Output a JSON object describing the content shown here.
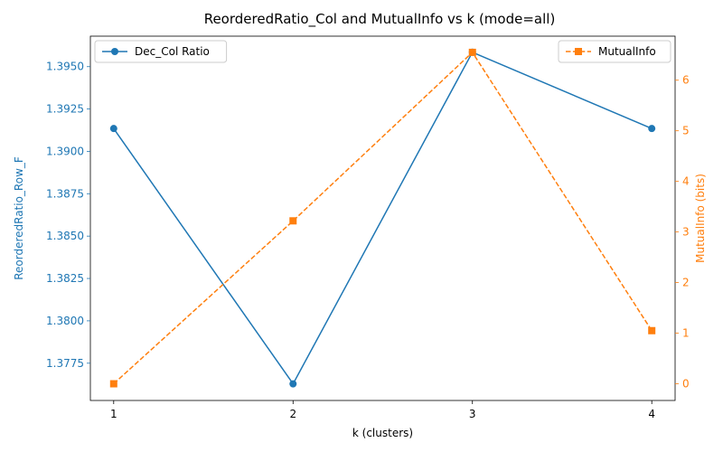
{
  "chart_data": {
    "type": "line",
    "title": "ReorderedRatio_Col and MutualInfo vs k (mode=all)",
    "xlabel": "k (clusters)",
    "x": [
      1,
      2,
      3,
      4
    ],
    "x_ticks": [
      "1",
      "2",
      "3",
      "4"
    ],
    "xlim": [
      0.87,
      4.13
    ],
    "grid": false,
    "left_axis": {
      "label": "ReorderedRatio_Row_F",
      "color": "#1f77b4",
      "ylim": [
        1.3753,
        1.3968
      ],
      "ticks": [
        1.3775,
        1.38,
        1.3825,
        1.385,
        1.3875,
        1.39,
        1.3925,
        1.395
      ],
      "tick_labels": [
        "1.3775",
        "1.3800",
        "1.3825",
        "1.3850",
        "1.3875",
        "1.3900",
        "1.3925",
        "1.3950"
      ]
    },
    "right_axis": {
      "label": "MutualInfo (bits)",
      "color": "#ff7f0e",
      "ylim": [
        -0.33,
        6.87
      ],
      "ticks": [
        0,
        1,
        2,
        3,
        4,
        5,
        6
      ],
      "tick_labels": [
        "0",
        "1",
        "2",
        "3",
        "4",
        "5",
        "6"
      ]
    },
    "series": [
      {
        "name": "Dec_Col Ratio",
        "axis": "left",
        "color": "#1f77b4",
        "marker": "circle",
        "linestyle": "solid",
        "values": [
          1.39135,
          1.37628,
          1.39585,
          1.39135
        ]
      },
      {
        "name": "MutualInfo",
        "axis": "right",
        "color": "#ff7f0e",
        "marker": "square",
        "linestyle": "dashed",
        "values": [
          0.0,
          3.22,
          6.55,
          1.05
        ]
      }
    ],
    "legends": [
      {
        "series": 0,
        "position": "top-left"
      },
      {
        "series": 1,
        "position": "top-right"
      }
    ]
  }
}
